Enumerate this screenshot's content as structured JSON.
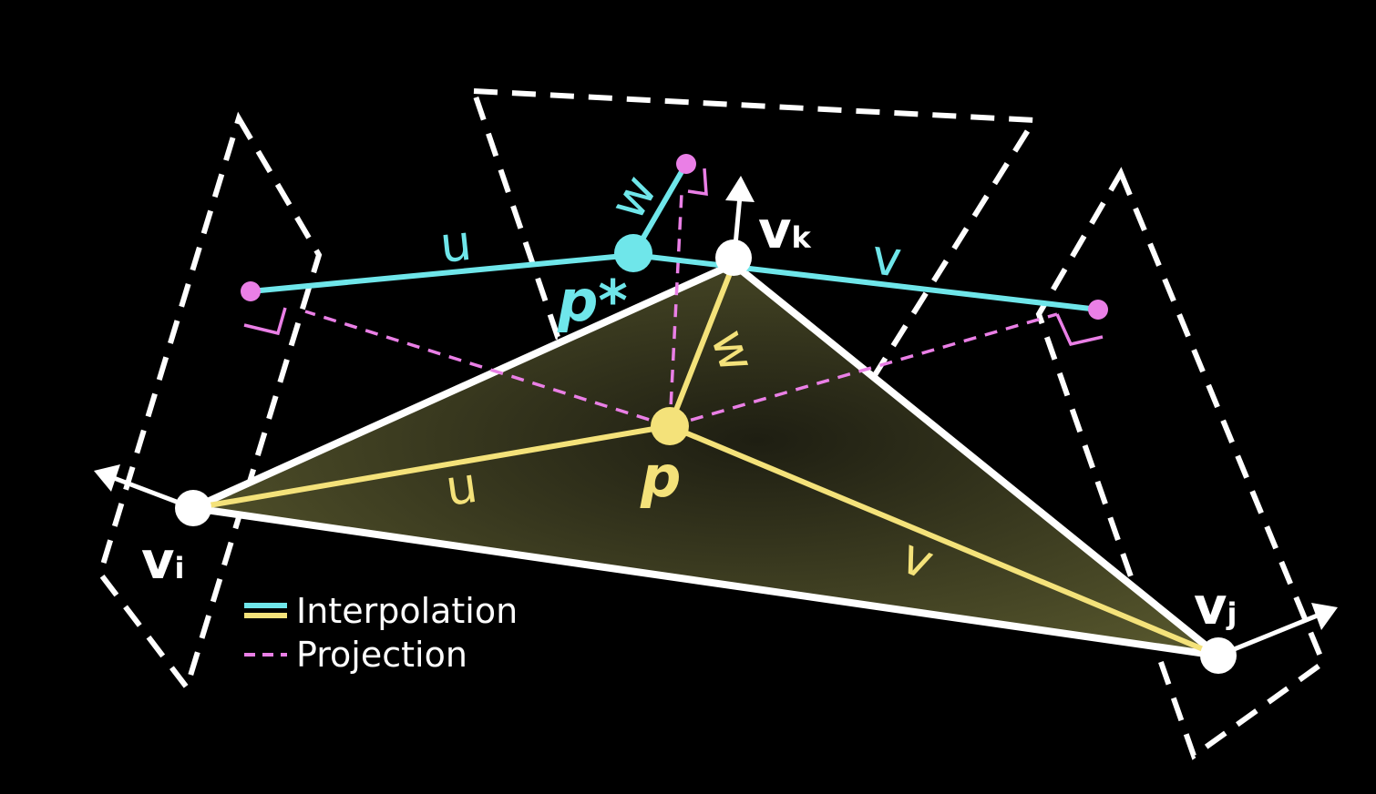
{
  "colors": {
    "background": "#000000",
    "triangle_fill": "#4b4a28",
    "triangle_edge": "#ffffff",
    "interpolation_cyan": "#6fe6ea",
    "interpolation_yellow": "#f4e27a",
    "projection_pink": "#ea7fe6",
    "vertex": "#ffffff",
    "dashed_plane": "#ffffff"
  },
  "vertices": {
    "vi": {
      "letter": "v",
      "sub": "i"
    },
    "vj": {
      "letter": "v",
      "sub": "j"
    },
    "vk": {
      "letter": "v",
      "sub": "k"
    }
  },
  "points": {
    "p_label": "p",
    "p_star_label": "p*"
  },
  "weights": {
    "u": "u",
    "v": "v",
    "w": "w"
  },
  "legend": {
    "interpolation_label": "Interpolation",
    "projection_label": "Projection"
  }
}
